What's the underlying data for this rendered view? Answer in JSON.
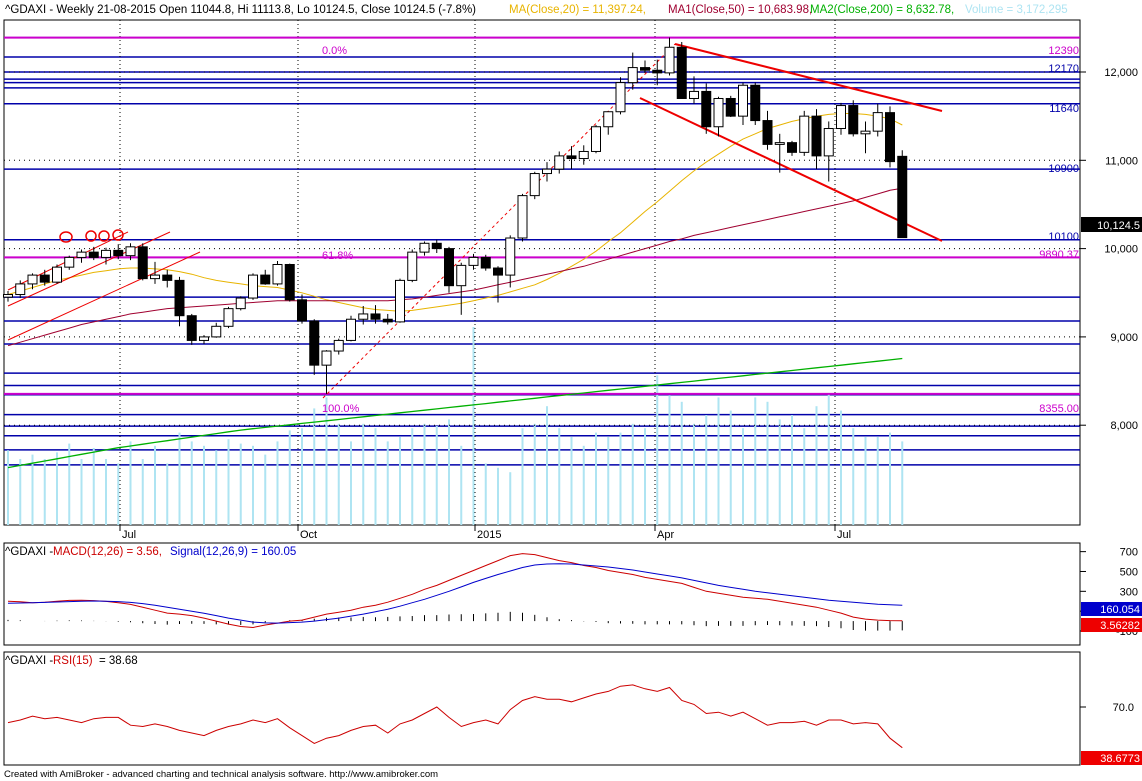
{
  "header": {
    "symbol": "^GDAXI",
    "main_info": "^GDAXI - Weekly 21-08-2015 Open 11044.8, Hi 11113.8, Lo 10124.5, Close 10124.5 (-7.8%)",
    "ma20": "MA(Close,20) = 11,397.24,",
    "ma50": "MA1(Close,50) = 10,683.98,",
    "ma200": "MA2(Close,200) = 8,632.78,",
    "volume": "Volume = 3,172,295",
    "macd_prefix": "^GDAXI - ",
    "macd_name": "MACD(12,26) = 3.56,",
    "macd_signal": "Signal(12,26,9) = 160.05",
    "rsi_prefix": "^GDAXI - ",
    "rsi_name": "RSI(15)",
    "rsi_value": "= 38.68"
  },
  "footer": "Created with AmiBroker - advanced charting and technical analysis software. http://www.amibroker.com",
  "colors": {
    "up_candle": "#ffffff",
    "down_candle": "#000000",
    "hline": "#0000aa",
    "fib": "#cc00cc",
    "ma20": "#e8b400",
    "ma50": "#a00030",
    "ma200": "#00b000",
    "volume": "#aee4f2",
    "trend": "#ee0000",
    "macd": "#cc0000",
    "signal": "#0000cc",
    "rsi": "#cc0000",
    "macd_badge": "#0000cc",
    "red_badge": "#ee0000"
  },
  "labels": {
    "fib_0": "0.0%",
    "fib_618": "61.8%",
    "fib_100": "100.0%",
    "price_badge": "10,124.5",
    "macd_badge": "160.054",
    "macd_badge2": "3.56282",
    "rsi_badge": "38.6773",
    "lvl_12390": "12390",
    "lvl_12170": "12170",
    "lvl_11640": "11640",
    "lvl_10900": "10900",
    "lvl_10100": "10100",
    "lvl_9890": "9890.37",
    "lvl_8355": "8355.00"
  },
  "chart_data": [
    {
      "type": "candlestick",
      "title": "^GDAXI - Weekly",
      "y_ticks": [
        8000,
        9000,
        10000,
        11000,
        12000
      ],
      "y_tick_labels": [
        "8,000",
        "9,000",
        "10,000",
        "11,000",
        "12,000"
      ],
      "x_ticks": [
        "Jul",
        "Oct",
        "2015",
        "Apr",
        "Jul"
      ],
      "ylim": [
        7450,
        12520
      ],
      "candles": [
        [
          9450,
          9520,
          9400,
          9480
        ],
        [
          9480,
          9640,
          9440,
          9600
        ],
        [
          9600,
          9720,
          9540,
          9700
        ],
        [
          9700,
          9760,
          9580,
          9620
        ],
        [
          9620,
          9820,
          9600,
          9790
        ],
        [
          9790,
          9920,
          9760,
          9900
        ],
        [
          9900,
          9990,
          9840,
          9960
        ],
        [
          9960,
          10020,
          9870,
          9900
        ],
        [
          9900,
          10010,
          9820,
          9980
        ],
        [
          9980,
          10050,
          9880,
          9920
        ],
        [
          9920,
          10060,
          9870,
          10020
        ],
        [
          10020,
          10060,
          9640,
          9660
        ],
        [
          9660,
          9850,
          9600,
          9700
        ],
        [
          9700,
          9760,
          9560,
          9640
        ],
        [
          9640,
          9680,
          9120,
          9240
        ],
        [
          9240,
          9260,
          8910,
          8960
        ],
        [
          8960,
          9020,
          8920,
          9000
        ],
        [
          9000,
          9160,
          8990,
          9120
        ],
        [
          9120,
          9340,
          9100,
          9320
        ],
        [
          9320,
          9460,
          9300,
          9440
        ],
        [
          9440,
          9720,
          9420,
          9700
        ],
        [
          9700,
          9760,
          9590,
          9600
        ],
        [
          9600,
          9860,
          9580,
          9820
        ],
        [
          9820,
          9830,
          9400,
          9420
        ],
        [
          9420,
          9480,
          9150,
          9180
        ],
        [
          9180,
          9200,
          8570,
          8680
        ],
        [
          8680,
          8850,
          8355,
          8840
        ],
        [
          8840,
          8980,
          8800,
          8960
        ],
        [
          8960,
          9240,
          8950,
          9200
        ],
        [
          9200,
          9350,
          9140,
          9260
        ],
        [
          9260,
          9360,
          9150,
          9200
        ],
        [
          9200,
          9260,
          9140,
          9170
        ],
        [
          9170,
          9660,
          9160,
          9640
        ],
        [
          9640,
          9990,
          9620,
          9960
        ],
        [
          9960,
          10080,
          9920,
          10060
        ],
        [
          10060,
          10100,
          9950,
          10000
        ],
        [
          10000,
          10020,
          9500,
          9580
        ],
        [
          9580,
          9840,
          9250,
          9810
        ],
        [
          9810,
          9940,
          9760,
          9900
        ],
        [
          9900,
          9930,
          9750,
          9780
        ],
        [
          9780,
          9800,
          9390,
          9700
        ],
        [
          9700,
          10150,
          9560,
          10120
        ],
        [
          10120,
          10620,
          10080,
          10600
        ],
        [
          10600,
          10870,
          10560,
          10850
        ],
        [
          10850,
          10980,
          10760,
          10900
        ],
        [
          10900,
          11100,
          10850,
          11050
        ],
        [
          11050,
          11160,
          10900,
          11020
        ],
        [
          11020,
          11170,
          10950,
          11100
        ],
        [
          11100,
          11400,
          11080,
          11380
        ],
        [
          11380,
          11550,
          11290,
          11550
        ],
        [
          11550,
          11940,
          11520,
          11880
        ],
        [
          11880,
          12220,
          11800,
          12050
        ],
        [
          12050,
          12130,
          11990,
          12020
        ],
        [
          12020,
          12140,
          11850,
          11990
        ],
        [
          11990,
          12390,
          11960,
          12280
        ],
        [
          12280,
          12340,
          11700,
          11700
        ],
        [
          11700,
          11950,
          11640,
          11780
        ],
        [
          11780,
          11870,
          11300,
          11380
        ],
        [
          11380,
          11720,
          11270,
          11700
        ],
        [
          11700,
          11730,
          11490,
          11500
        ],
        [
          11500,
          11880,
          11400,
          11850
        ],
        [
          11850,
          11880,
          11400,
          11450
        ],
        [
          11450,
          11560,
          11120,
          11180
        ],
        [
          11180,
          11300,
          10860,
          11200
        ],
        [
          11200,
          11220,
          11050,
          11090
        ],
        [
          11090,
          11560,
          11050,
          11500
        ],
        [
          11500,
          11580,
          10900,
          11050
        ],
        [
          11050,
          11440,
          10760,
          11360
        ],
        [
          11360,
          11650,
          11290,
          11620
        ],
        [
          11620,
          11680,
          11270,
          11300
        ],
        [
          11300,
          11440,
          11080,
          11330
        ],
        [
          11330,
          11640,
          11270,
          11540
        ],
        [
          11540,
          11610,
          10920,
          10985
        ],
        [
          11044.8,
          11113.8,
          10124.5,
          10124.5
        ]
      ],
      "ma20": [
        9480,
        9520,
        9560,
        9600,
        9640,
        9670,
        9700,
        9730,
        9750,
        9770,
        9780,
        9780,
        9770,
        9760,
        9740,
        9710,
        9670,
        9640,
        9620,
        9600,
        9580,
        9570,
        9560,
        9530,
        9500,
        9460,
        9420,
        9390,
        9360,
        9330,
        9310,
        9300,
        9290,
        9300,
        9320,
        9340,
        9360,
        9380,
        9410,
        9440,
        9470,
        9510,
        9550,
        9590,
        9650,
        9720,
        9800,
        9880,
        9970,
        10080,
        10180,
        10300,
        10420,
        10530,
        10650,
        10770,
        10880,
        10980,
        11070,
        11160,
        11240,
        11300,
        11360,
        11400,
        11440,
        11470,
        11500,
        11520,
        11530,
        11530,
        11520,
        11500,
        11470,
        11400
      ],
      "ma50": [
        8900,
        8940,
        8980,
        9020,
        9060,
        9100,
        9140,
        9170,
        9200,
        9230,
        9260,
        9280,
        9300,
        9320,
        9330,
        9340,
        9350,
        9360,
        9370,
        9380,
        9390,
        9400,
        9410,
        9410,
        9410,
        9410,
        9410,
        9410,
        9410,
        9410,
        9410,
        9410,
        9420,
        9430,
        9450,
        9470,
        9490,
        9510,
        9530,
        9560,
        9590,
        9620,
        9650,
        9680,
        9710,
        9740,
        9770,
        9800,
        9840,
        9880,
        9920,
        9960,
        10000,
        10040,
        10080,
        10110,
        10150,
        10180,
        10210,
        10240,
        10270,
        10300,
        10330,
        10360,
        10390,
        10420,
        10450,
        10480,
        10510,
        10540,
        10580,
        10620,
        10660,
        10684
      ],
      "ma200": [
        7520,
        7545,
        7570,
        7595,
        7620,
        7645,
        7670,
        7695,
        7720,
        7745,
        7765,
        7785,
        7805,
        7825,
        7845,
        7865,
        7885,
        7905,
        7925,
        7945,
        7960,
        7975,
        7990,
        8005,
        8020,
        8035,
        8050,
        8065,
        8080,
        8095,
        8110,
        8125,
        8140,
        8155,
        8170,
        8185,
        8200,
        8215,
        8230,
        8245,
        8260,
        8275,
        8290,
        8305,
        8320,
        8335,
        8350,
        8365,
        8380,
        8395,
        8410,
        8425,
        8440,
        8455,
        8470,
        8485,
        8500,
        8515,
        8530,
        8545,
        8560,
        8575,
        8590,
        8605,
        8620,
        8635,
        8650,
        8665,
        8680,
        8695,
        8710,
        8725,
        8740,
        8755
      ],
      "horizontal_levels": [
        12390,
        12170,
        12000,
        11920,
        11880,
        11820,
        11640,
        10900,
        10100,
        9900,
        9450,
        9180,
        8920,
        8590,
        8450,
        8345,
        8120,
        7990,
        7880,
        7720,
        7550
      ],
      "fib_levels": [
        {
          "label": "0.0%",
          "value": 12390
        },
        {
          "label": "61.8%",
          "value": 9900
        },
        {
          "label": "100.0%",
          "value": 8355
        }
      ],
      "volume": [
        34,
        30,
        32,
        30,
        33,
        37,
        30,
        35,
        30,
        28,
        38,
        30,
        36,
        28,
        42,
        38,
        36,
        34,
        39,
        37,
        36,
        32,
        38,
        43,
        44,
        53,
        58,
        46,
        38,
        46,
        44,
        38,
        40,
        44,
        46,
        45,
        48,
        36,
        90,
        28,
        26,
        24,
        44,
        46,
        54,
        44,
        40,
        36,
        42,
        40,
        42,
        46,
        44,
        68,
        59,
        56,
        46,
        50,
        58,
        52,
        44,
        58,
        56,
        48,
        50,
        44,
        54,
        60,
        52,
        44,
        40,
        40,
        42,
        38
      ]
    },
    {
      "type": "line",
      "title": "MACD(12,26)",
      "y_ticks": [
        -100,
        100,
        300,
        500,
        700
      ],
      "ylim": [
        -160,
        740
      ],
      "series": [
        {
          "name": "MACD(12,26)",
          "values": [
            200,
            195,
            185,
            190,
            200,
            208,
            210,
            206,
            198,
            185,
            168,
            140,
            110,
            80,
            70,
            55,
            30,
            0,
            -30,
            -55,
            -65,
            -40,
            -20,
            0,
            10,
            40,
            70,
            90,
            110,
            140,
            160,
            190,
            230,
            270,
            320,
            360,
            410,
            460,
            510,
            560,
            610,
            660,
            680,
            670,
            640,
            610,
            590,
            560,
            540,
            510,
            490,
            470,
            440,
            420,
            400,
            380,
            340,
            300,
            280,
            260,
            240,
            230,
            220,
            200,
            180,
            160,
            140,
            110,
            80,
            40,
            20,
            10,
            5,
            3.56
          ]
        },
        {
          "name": "Signal(12,26,9)",
          "values": [
            180,
            182,
            185,
            188,
            192,
            196,
            200,
            202,
            200,
            196,
            188,
            176,
            160,
            140,
            120,
            100,
            78,
            55,
            30,
            10,
            -10,
            -18,
            -20,
            -15,
            -10,
            0,
            15,
            30,
            50,
            70,
            95,
            120,
            150,
            185,
            220,
            260,
            300,
            345,
            390,
            430,
            470,
            505,
            540,
            565,
            575,
            578,
            575,
            565,
            555,
            545,
            530,
            515,
            495,
            475,
            455,
            435,
            410,
            385,
            360,
            340,
            320,
            300,
            285,
            270,
            255,
            240,
            225,
            210,
            200,
            190,
            180,
            170,
            165,
            160.05
          ]
        }
      ]
    },
    {
      "type": "line",
      "title": "RSI(15)",
      "y_ticks": [
        70
      ],
      "ylim": [
        35,
        90
      ],
      "series": [
        {
          "name": "RSI(15)",
          "values": [
            58,
            60,
            63,
            61,
            62,
            60,
            58,
            61,
            62,
            62,
            56,
            55,
            57,
            55,
            52,
            50,
            48,
            52,
            55,
            57,
            60,
            58,
            61,
            54,
            48,
            42,
            46,
            48,
            52,
            55,
            56,
            50,
            57,
            60,
            65,
            70,
            62,
            55,
            58,
            60,
            57,
            68,
            75,
            78,
            76,
            76,
            74,
            77,
            80,
            82,
            86,
            87,
            84,
            82,
            85,
            75,
            72,
            65,
            66,
            63,
            66,
            61,
            56,
            58,
            58,
            59,
            56,
            60,
            60,
            57,
            58,
            57,
            46,
            38.68
          ]
        }
      ]
    }
  ]
}
